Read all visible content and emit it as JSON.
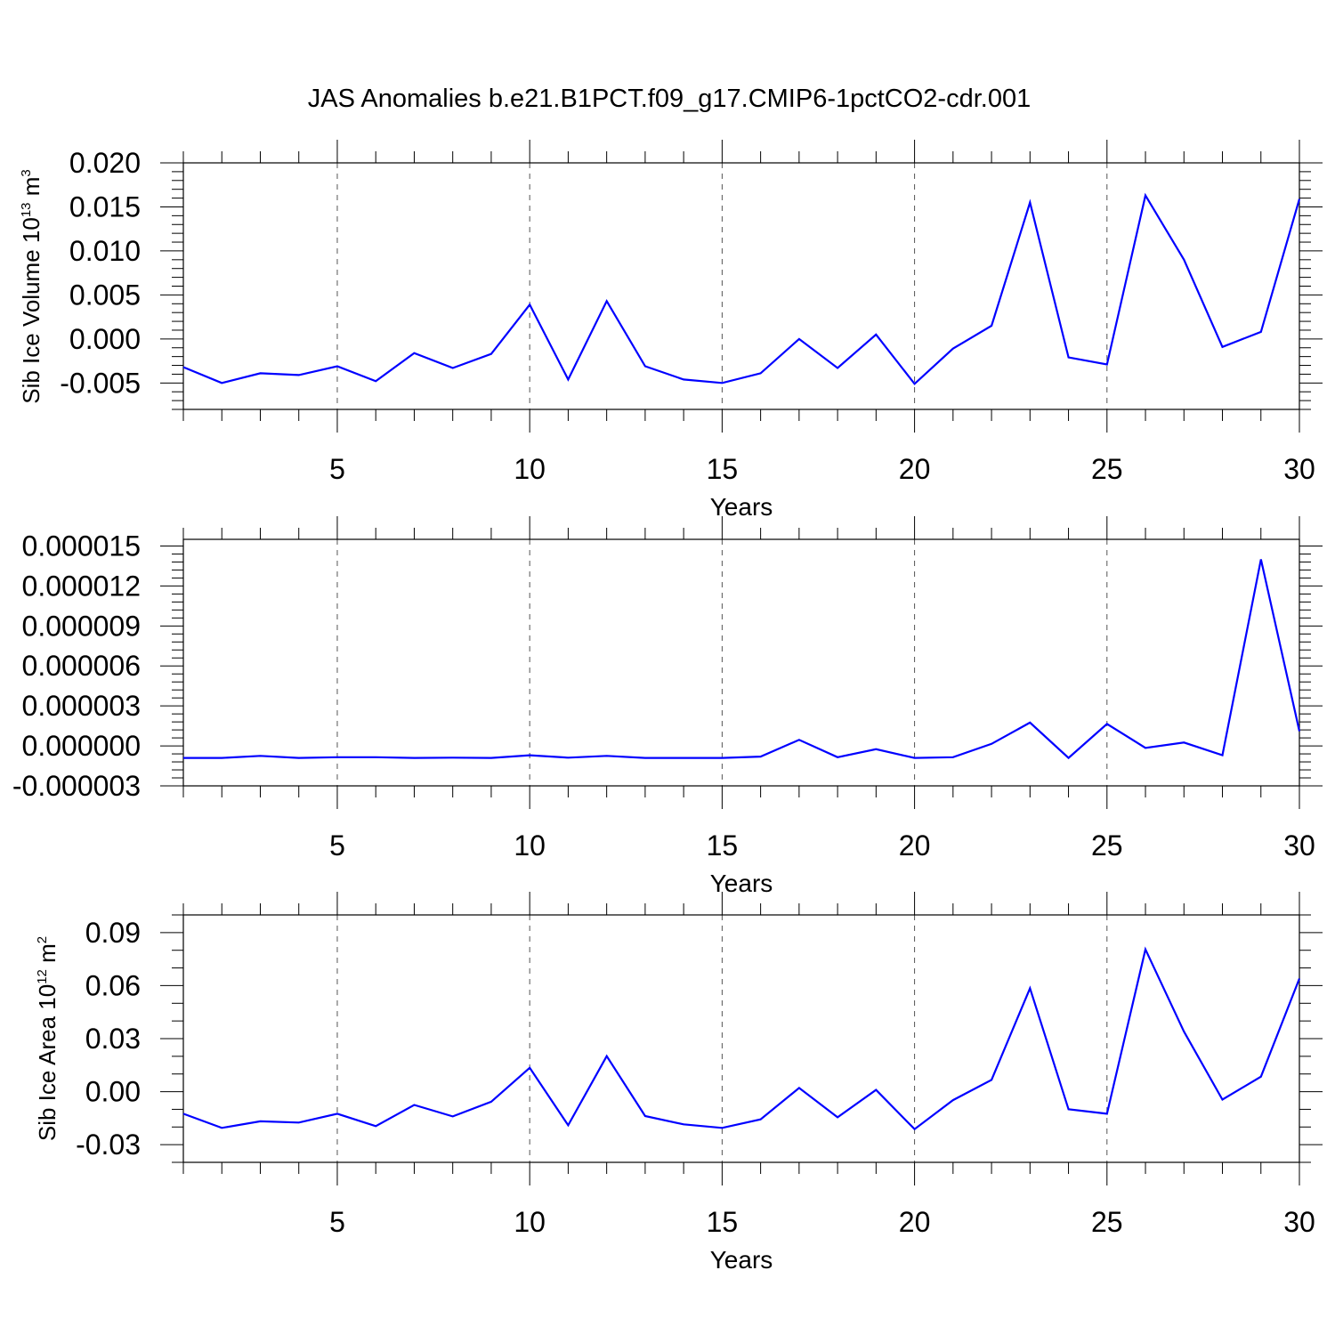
{
  "title": "JAS Anomalies b.e21.B1PCT.f09_g17.CMIP6-1pctCO2-cdr.001",
  "colors": {
    "series": "#0000ff",
    "axes": "#000000",
    "grid": "#555555"
  },
  "chart_data": [
    {
      "type": "line",
      "title": "JAS Anomalies b.e21.B1PCT.f09_g17.CMIP6-1pctCO2-cdr.001",
      "xlabel": "Years",
      "ylabel": "Sib Ice Volume 10",
      "ylabel_exp": "13",
      "ylabel_unit": "m",
      "ylabel_unit_exp": "3",
      "xlim": [
        1,
        30
      ],
      "ylim": [
        -0.008,
        0.02
      ],
      "x_ticks": [
        5,
        10,
        15,
        20,
        25,
        30
      ],
      "x_tick_labels": [
        "5",
        "10",
        "15",
        "20",
        "25",
        "30"
      ],
      "y_ticks": [
        -0.005,
        0.0,
        0.005,
        0.01,
        0.015,
        0.02
      ],
      "y_tick_labels": [
        "-0.005",
        "0.000",
        "0.005",
        "0.010",
        "0.015",
        "0.020"
      ],
      "grid": "vertical dashed at major x ticks",
      "x": [
        1,
        2,
        3,
        4,
        5,
        6,
        7,
        8,
        9,
        10,
        11,
        12,
        13,
        14,
        15,
        16,
        17,
        18,
        19,
        20,
        21,
        22,
        23,
        24,
        25,
        26,
        27,
        28,
        29,
        30
      ],
      "values": [
        -0.0032,
        -0.005,
        -0.0039,
        -0.0041,
        -0.0031,
        -0.0048,
        -0.0016,
        -0.0033,
        -0.0017,
        0.0039,
        -0.0046,
        0.0043,
        -0.0031,
        -0.0046,
        -0.005,
        -0.0039,
        0.0,
        -0.0033,
        0.0005,
        -0.0051,
        -0.0011,
        0.0015,
        0.0155,
        -0.0021,
        -0.0029,
        0.0163,
        0.009,
        -0.0009,
        0.0008,
        0.0159
      ]
    },
    {
      "type": "line",
      "xlabel": "Years",
      "ylabel": "",
      "xlim": [
        1,
        30
      ],
      "ylim": [
        -3e-06,
        1.55e-05
      ],
      "x_ticks": [
        5,
        10,
        15,
        20,
        25,
        30
      ],
      "x_tick_labels": [
        "5",
        "10",
        "15",
        "20",
        "25",
        "30"
      ],
      "y_ticks": [
        -3e-06,
        0.0,
        3e-06,
        6e-06,
        9e-06,
        1.2e-05,
        1.5e-05
      ],
      "y_tick_labels": [
        "-0.000003",
        "0.000000",
        "0.000003",
        "0.000006",
        "0.000009",
        "0.000012",
        "0.000015"
      ],
      "grid": "vertical dashed at major x ticks",
      "x": [
        1,
        2,
        3,
        4,
        5,
        6,
        7,
        8,
        9,
        10,
        11,
        12,
        13,
        14,
        15,
        16,
        17,
        18,
        19,
        20,
        21,
        22,
        23,
        24,
        25,
        26,
        27,
        28,
        29,
        30
      ],
      "values": [
        -9e-07,
        -9e-07,
        -7.5e-07,
        -9e-07,
        -8.5e-07,
        -8.5e-07,
        -9e-07,
        -8.8e-07,
        -9e-07,
        -7e-07,
        -8.8e-07,
        -7.5e-07,
        -9e-07,
        -9e-07,
        -9e-07,
        -8e-07,
        4.5e-07,
        -8.5e-07,
        -2.5e-07,
        -9e-07,
        -8.5e-07,
        1.5e-07,
        1.75e-06,
        -9e-07,
        1.65e-06,
        -1.5e-07,
        2.5e-07,
        -7e-07,
        1.4e-05,
        1.1e-06
      ]
    },
    {
      "type": "line",
      "xlabel": "Years",
      "ylabel": "Sib Ice Area 10",
      "ylabel_exp": "12",
      "ylabel_unit": "m",
      "ylabel_unit_exp": "2",
      "xlim": [
        1,
        30
      ],
      "ylim": [
        -0.04,
        0.1
      ],
      "x_ticks": [
        5,
        10,
        15,
        20,
        25,
        30
      ],
      "x_tick_labels": [
        "5",
        "10",
        "15",
        "20",
        "25",
        "30"
      ],
      "y_ticks": [
        -0.03,
        0.0,
        0.03,
        0.06,
        0.09
      ],
      "y_tick_labels": [
        "-0.03",
        "0.00",
        "0.03",
        "0.06",
        "0.09"
      ],
      "grid": "vertical dashed at major x ticks",
      "x": [
        1,
        2,
        3,
        4,
        5,
        6,
        7,
        8,
        9,
        10,
        11,
        12,
        13,
        14,
        15,
        16,
        17,
        18,
        19,
        20,
        21,
        22,
        23,
        24,
        25,
        26,
        27,
        28,
        29,
        30
      ],
      "values": [
        -0.0125,
        -0.0205,
        -0.0168,
        -0.0175,
        -0.0125,
        -0.0195,
        -0.0075,
        -0.014,
        -0.0057,
        0.0135,
        -0.019,
        0.0201,
        -0.0138,
        -0.0185,
        -0.0205,
        -0.0157,
        0.0021,
        -0.0145,
        0.001,
        -0.0212,
        -0.0048,
        0.0067,
        0.0585,
        -0.01,
        -0.0125,
        0.0805,
        0.034,
        -0.0045,
        0.0085,
        0.064
      ]
    }
  ]
}
